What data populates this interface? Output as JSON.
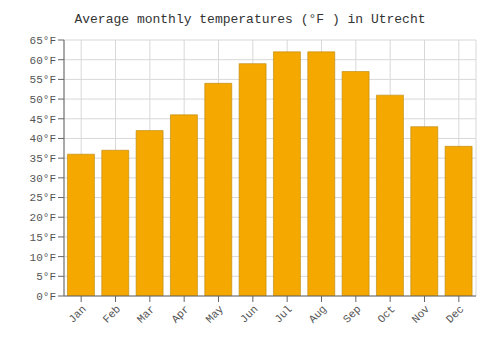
{
  "chart_data": {
    "type": "bar",
    "title": "Average monthly temperatures (°F ) in Utrecht",
    "categories": [
      "Jan",
      "Feb",
      "Mar",
      "Apr",
      "May",
      "Jun",
      "Jul",
      "Aug",
      "Sep",
      "Oct",
      "Nov",
      "Dec"
    ],
    "values": [
      36,
      37,
      42,
      46,
      54,
      59,
      62,
      62,
      57,
      51,
      43,
      38
    ],
    "color": "#F5A800",
    "ylim": [
      0,
      65
    ],
    "yticks": [
      {
        "value": 0,
        "label": "0°F"
      },
      {
        "value": 5,
        "label": "5°F"
      },
      {
        "value": 10,
        "label": "10°F"
      },
      {
        "value": 15,
        "label": "15°F"
      },
      {
        "value": 20,
        "label": "20°F"
      },
      {
        "value": 25,
        "label": "25°F"
      },
      {
        "value": 30,
        "label": "30°F"
      },
      {
        "value": 35,
        "label": "35°F"
      },
      {
        "value": 40,
        "label": "40°F"
      },
      {
        "value": 45,
        "label": "45°F"
      },
      {
        "value": 50,
        "label": "50°F"
      },
      {
        "value": 55,
        "label": "55°F"
      },
      {
        "value": 60,
        "label": "60°F"
      },
      {
        "value": 65,
        "label": "65°F"
      }
    ],
    "grid": true
  }
}
